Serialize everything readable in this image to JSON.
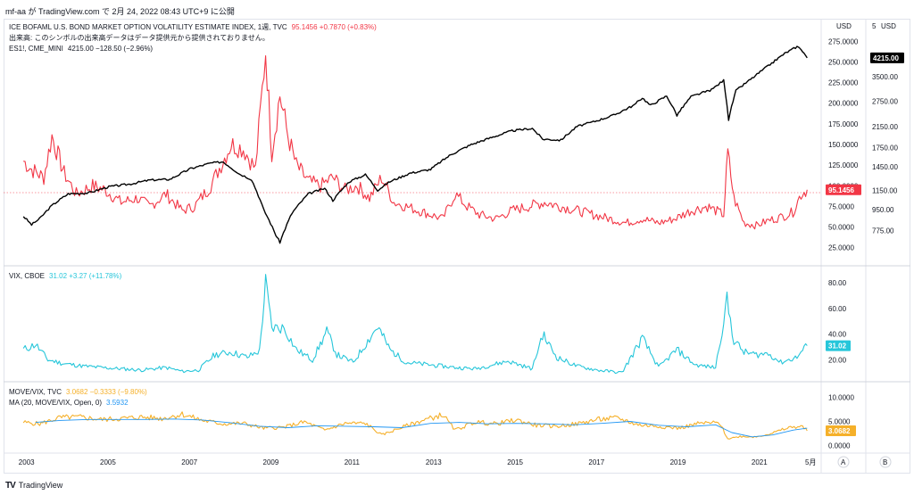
{
  "header": {
    "publish_text": "mf-aa が TradingView.com で 2月 24, 2022 08:43 UTC+9 に公開"
  },
  "footer": {
    "brand": "TradingView",
    "logo": "TV"
  },
  "panes": {
    "main": {
      "legend": [
        {
          "symbol": "ICE BOFAML U.S. BOND MARKET OPTION VOLATILITY ESTIMATE INDEX, 1週, TVC",
          "values": "95.1456  +0.7870 (+0.83%)",
          "color": "#f23645"
        },
        {
          "symbol": "出来高: このシンボルの出来高データはデータ提供元から提供されておりません。",
          "values": "",
          "color": "#131722"
        },
        {
          "symbol": "ES1!, CME_MINI",
          "values": "4215.00  −128.50 (−2.96%)",
          "color": "#131722"
        }
      ]
    },
    "vix": {
      "legend": [
        {
          "symbol": "VIX, CBOE",
          "values": "31.02  +3.27 (+11.78%)",
          "color": "#26c6da"
        }
      ]
    },
    "ratio": {
      "legend": [
        {
          "symbol": "MOVE/VIX, TVC",
          "values": "3.0682  −0.3333 (−9.80%)",
          "color": "#f5b02a"
        },
        {
          "symbol": "MA (20, MOVE/VIX, Open, 0)",
          "values": "3.5932",
          "color": "#2196f3"
        }
      ]
    }
  },
  "axis_controls": {
    "usd_left": "USD",
    "usd_right": "USD",
    "five_right": "5",
    "auto_button": "A",
    "log_button": "B",
    "x_end": "5月"
  },
  "colors": {
    "move": "#f23645",
    "es": "#000000",
    "vix": "#26c6da",
    "ratio": "#f5b02a",
    "ma": "#2196f3"
  },
  "chart_data": [
    {
      "type": "line",
      "title": "ICE BOFAML U.S. BOND MARKET OPTION VOLATILITY ESTIMATE INDEX",
      "x_ticks": [
        "2003",
        "2005",
        "2007",
        "2009",
        "2011",
        "2013",
        "2015",
        "2017",
        "2019",
        "2021"
      ],
      "y_ticks_left": [
        "275.0000",
        "250.0000",
        "225.0000",
        "200.0000",
        "175.0000",
        "150.0000",
        "125.0000",
        "100.0000",
        "75.0000",
        "50.0000",
        "25.0000"
      ],
      "y_ticks_right": [
        "3500.00",
        "2750.00",
        "2150.00",
        "1750.00",
        "1450.00",
        "1150.00",
        "950.00",
        "775.00"
      ],
      "ylim_left": [
        15,
        285
      ],
      "series": [
        {
          "name": "ICE BOFAML U.S. BOND MARKET OPTION VOLATILITY ESTIMATE INDEX",
          "axis": "left",
          "last": "95.1456",
          "points": [
            [
              2002.9,
              130
            ],
            [
              2003.1,
              120
            ],
            [
              2003.4,
              110
            ],
            [
              2003.6,
              160
            ],
            [
              2003.9,
              115
            ],
            [
              2004.2,
              90
            ],
            [
              2004.6,
              100
            ],
            [
              2004.9,
              95
            ],
            [
              2005.3,
              80
            ],
            [
              2005.7,
              85
            ],
            [
              2006.0,
              75
            ],
            [
              2006.4,
              90
            ],
            [
              2006.8,
              70
            ],
            [
              2007.1,
              75
            ],
            [
              2007.5,
              100
            ],
            [
              2007.8,
              130
            ],
            [
              2008.0,
              150
            ],
            [
              2008.3,
              145
            ],
            [
              2008.6,
              120
            ],
            [
              2008.85,
              264
            ],
            [
              2009.0,
              140
            ],
            [
              2009.2,
              210
            ],
            [
              2009.4,
              160
            ],
            [
              2009.6,
              125
            ],
            [
              2009.9,
              105
            ],
            [
              2010.2,
              100
            ],
            [
              2010.5,
              110
            ],
            [
              2010.8,
              95
            ],
            [
              2011.1,
              100
            ],
            [
              2011.4,
              85
            ],
            [
              2011.7,
              110
            ],
            [
              2012.0,
              80
            ],
            [
              2012.3,
              75
            ],
            [
              2012.6,
              70
            ],
            [
              2012.9,
              65
            ],
            [
              2013.2,
              60
            ],
            [
              2013.5,
              90
            ],
            [
              2013.8,
              75
            ],
            [
              2014.1,
              65
            ],
            [
              2014.5,
              60
            ],
            [
              2014.9,
              70
            ],
            [
              2015.3,
              75
            ],
            [
              2015.7,
              80
            ],
            [
              2016.1,
              75
            ],
            [
              2016.5,
              70
            ],
            [
              2016.9,
              65
            ],
            [
              2017.3,
              60
            ],
            [
              2017.7,
              55
            ],
            [
              2018.1,
              60
            ],
            [
              2018.5,
              55
            ],
            [
              2018.9,
              60
            ],
            [
              2019.3,
              70
            ],
            [
              2019.7,
              75
            ],
            [
              2020.1,
              65
            ],
            [
              2020.2,
              140
            ],
            [
              2020.35,
              85
            ],
            [
              2020.6,
              55
            ],
            [
              2020.9,
              52
            ],
            [
              2021.2,
              58
            ],
            [
              2021.5,
              62
            ],
            [
              2021.8,
              68
            ],
            [
              2022.0,
              90
            ],
            [
              2022.15,
              95.1
            ]
          ]
        },
        {
          "name": "ES1!, CME_MINI",
          "axis": "right",
          "last": "4215.00",
          "points": [
            [
              2002.9,
              890
            ],
            [
              2003.1,
              820
            ],
            [
              2003.3,
              870
            ],
            [
              2003.6,
              990
            ],
            [
              2004.0,
              1110
            ],
            [
              2004.5,
              1120
            ],
            [
              2005.0,
              1190
            ],
            [
              2005.5,
              1220
            ],
            [
              2006.0,
              1270
            ],
            [
              2006.5,
              1280
            ],
            [
              2007.0,
              1420
            ],
            [
              2007.5,
              1500
            ],
            [
              2007.8,
              1520
            ],
            [
              2008.2,
              1350
            ],
            [
              2008.5,
              1280
            ],
            [
              2008.8,
              950
            ],
            [
              2009.1,
              740
            ],
            [
              2009.2,
              690
            ],
            [
              2009.5,
              920
            ],
            [
              2009.9,
              1110
            ],
            [
              2010.3,
              1170
            ],
            [
              2010.5,
              1040
            ],
            [
              2010.9,
              1250
            ],
            [
              2011.3,
              1340
            ],
            [
              2011.6,
              1150
            ],
            [
              2011.9,
              1250
            ],
            [
              2012.4,
              1360
            ],
            [
              2012.9,
              1410
            ],
            [
              2013.4,
              1630
            ],
            [
              2013.9,
              1800
            ],
            [
              2014.4,
              1930
            ],
            [
              2014.9,
              2060
            ],
            [
              2015.4,
              2110
            ],
            [
              2015.65,
              1900
            ],
            [
              2016.1,
              1880
            ],
            [
              2016.5,
              2150
            ],
            [
              2016.9,
              2250
            ],
            [
              2017.4,
              2400
            ],
            [
              2017.9,
              2650
            ],
            [
              2018.1,
              2850
            ],
            [
              2018.3,
              2640
            ],
            [
              2018.7,
              2900
            ],
            [
              2018.95,
              2400
            ],
            [
              2019.3,
              2880
            ],
            [
              2019.8,
              3080
            ],
            [
              2020.1,
              3380
            ],
            [
              2020.22,
              2300
            ],
            [
              2020.4,
              3050
            ],
            [
              2020.8,
              3450
            ],
            [
              2021.2,
              3900
            ],
            [
              2021.6,
              4400
            ],
            [
              2021.9,
              4700
            ],
            [
              2022.0,
              4600
            ],
            [
              2022.15,
              4215
            ]
          ]
        }
      ]
    },
    {
      "type": "line",
      "title": "VIX",
      "y_ticks": [
        "80.00",
        "60.00",
        "40.00",
        "20.00"
      ],
      "ylim": [
        5,
        85
      ],
      "series": [
        {
          "name": "VIX, CBOE",
          "last": "31.02",
          "points": [
            [
              2002.9,
              28
            ],
            [
              2003.2,
              32
            ],
            [
              2003.5,
              20
            ],
            [
              2003.9,
              17
            ],
            [
              2004.4,
              15
            ],
            [
              2004.8,
              14
            ],
            [
              2005.3,
              13
            ],
            [
              2005.8,
              12
            ],
            [
              2006.4,
              14
            ],
            [
              2006.8,
              11
            ],
            [
              2007.2,
              12
            ],
            [
              2007.6,
              24
            ],
            [
              2008.0,
              26
            ],
            [
              2008.4,
              22
            ],
            [
              2008.7,
              27
            ],
            [
              2008.85,
              80
            ],
            [
              2009.0,
              45
            ],
            [
              2009.3,
              45
            ],
            [
              2009.6,
              28
            ],
            [
              2010.0,
              20
            ],
            [
              2010.35,
              42
            ],
            [
              2010.6,
              24
            ],
            [
              2011.0,
              18
            ],
            [
              2011.6,
              46
            ],
            [
              2011.9,
              28
            ],
            [
              2012.3,
              18
            ],
            [
              2012.9,
              16
            ],
            [
              2013.5,
              14
            ],
            [
              2014.0,
              13
            ],
            [
              2014.8,
              19
            ],
            [
              2015.4,
              13
            ],
            [
              2015.65,
              40
            ],
            [
              2016.0,
              22
            ],
            [
              2016.5,
              15
            ],
            [
              2017.0,
              12
            ],
            [
              2017.6,
              10
            ],
            [
              2018.1,
              37
            ],
            [
              2018.5,
              14
            ],
            [
              2018.95,
              28
            ],
            [
              2019.4,
              16
            ],
            [
              2019.9,
              14
            ],
            [
              2020.18,
              66
            ],
            [
              2020.35,
              35
            ],
            [
              2020.6,
              26
            ],
            [
              2020.9,
              24
            ],
            [
              2021.2,
              25
            ],
            [
              2021.5,
              18
            ],
            [
              2021.9,
              22
            ],
            [
              2022.0,
              26
            ],
            [
              2022.15,
              31
            ]
          ]
        }
      ]
    },
    {
      "type": "line",
      "title": "MOVE/VIX",
      "y_ticks": [
        "10.0000",
        "5.0000",
        "0.0000"
      ],
      "ylim": [
        -1,
        11
      ],
      "series": [
        {
          "name": "MOVE/VIX, TVC",
          "last": "3.0682",
          "points": [
            [
              2002.9,
              4.8
            ],
            [
              2003.3,
              4.5
            ],
            [
              2003.8,
              5.8
            ],
            [
              2004.3,
              5.9
            ],
            [
              2004.8,
              5.4
            ],
            [
              2005.3,
              5.6
            ],
            [
              2005.8,
              5.9
            ],
            [
              2006.3,
              5.6
            ],
            [
              2006.8,
              6.5
            ],
            [
              2007.3,
              5.2
            ],
            [
              2007.8,
              4.5
            ],
            [
              2008.3,
              4.6
            ],
            [
              2008.8,
              3.6
            ],
            [
              2009.3,
              3.8
            ],
            [
              2009.8,
              4.9
            ],
            [
              2010.3,
              3.2
            ],
            [
              2010.8,
              4.6
            ],
            [
              2011.3,
              4.6
            ],
            [
              2011.7,
              2.2
            ],
            [
              2012.2,
              3.8
            ],
            [
              2012.7,
              5.2
            ],
            [
              2013.2,
              6.4
            ],
            [
              2013.5,
              3.2
            ],
            [
              2014.0,
              4.9
            ],
            [
              2014.5,
              4.5
            ],
            [
              2015.0,
              5.3
            ],
            [
              2015.5,
              4.2
            ],
            [
              2016.0,
              4.0
            ],
            [
              2016.5,
              4.5
            ],
            [
              2017.0,
              5.4
            ],
            [
              2017.5,
              5.7
            ],
            [
              2018.0,
              4.3
            ],
            [
              2018.5,
              4.0
            ],
            [
              2019.0,
              3.6
            ],
            [
              2019.5,
              4.6
            ],
            [
              2020.0,
              4.7
            ],
            [
              2020.2,
              1.4
            ],
            [
              2020.5,
              1.9
            ],
            [
              2020.9,
              1.8
            ],
            [
              2021.3,
              2.6
            ],
            [
              2021.7,
              3.7
            ],
            [
              2022.0,
              4.0
            ],
            [
              2022.15,
              3.07
            ]
          ]
        },
        {
          "name": "MA (20, MOVE/VIX, Open, 0)",
          "last": "3.5932",
          "points": [
            [
              2003.2,
              4.8
            ],
            [
              2003.8,
              5.2
            ],
            [
              2004.5,
              5.4
            ],
            [
              2005.2,
              5.4
            ],
            [
              2005.9,
              5.4
            ],
            [
              2006.6,
              5.5
            ],
            [
              2007.3,
              5.3
            ],
            [
              2008.0,
              4.7
            ],
            [
              2008.7,
              4.0
            ],
            [
              2009.4,
              3.7
            ],
            [
              2010.1,
              4.1
            ],
            [
              2010.8,
              4.0
            ],
            [
              2011.5,
              3.9
            ],
            [
              2012.2,
              3.7
            ],
            [
              2012.9,
              4.6
            ],
            [
              2013.6,
              4.8
            ],
            [
              2014.3,
              4.5
            ],
            [
              2015.0,
              4.6
            ],
            [
              2015.7,
              4.5
            ],
            [
              2016.4,
              4.3
            ],
            [
              2017.1,
              4.6
            ],
            [
              2017.8,
              5.0
            ],
            [
              2018.5,
              4.2
            ],
            [
              2019.2,
              3.9
            ],
            [
              2019.9,
              4.3
            ],
            [
              2020.3,
              2.7
            ],
            [
              2020.8,
              1.8
            ],
            [
              2021.3,
              2.2
            ],
            [
              2021.8,
              3.2
            ],
            [
              2022.15,
              3.59
            ]
          ]
        }
      ]
    }
  ]
}
